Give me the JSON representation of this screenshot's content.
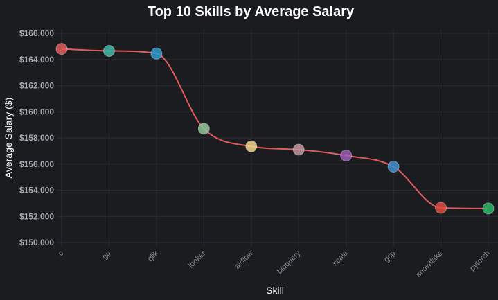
{
  "chart_data": {
    "type": "line",
    "title": "Top 10 Skills by Average Salary",
    "xlabel": "Skill",
    "ylabel": "Average Salary ($)",
    "categories": [
      "c",
      "go",
      "qlik",
      "looker",
      "airflow",
      "bigquery",
      "scala",
      "gcp",
      "snowflake",
      "pytorch"
    ],
    "values": [
      164800,
      164650,
      164450,
      158700,
      157350,
      157100,
      156650,
      155800,
      152650,
      152600
    ],
    "ylim": [
      150000,
      166000
    ],
    "yticks": [
      150000,
      152000,
      154000,
      156000,
      158000,
      160000,
      162000,
      164000,
      166000
    ],
    "ytick_labels": [
      "$150,000",
      "$152,000",
      "$154,000",
      "$156,000",
      "$158,000",
      "$160,000",
      "$162,000",
      "$164,000",
      "$166,000"
    ],
    "grid": true,
    "smooth": true,
    "line_color": "#e05c5c",
    "grid_color": "#2c2d33",
    "background_color": "#1b1c20",
    "point_colors": [
      "#e05c5c",
      "#3fb8a9",
      "#2e9bd1",
      "#8fc49a",
      "#f0d48c",
      "#c4979f",
      "#9b5cb8",
      "#3d8fd4",
      "#e0483c",
      "#2db565"
    ]
  }
}
